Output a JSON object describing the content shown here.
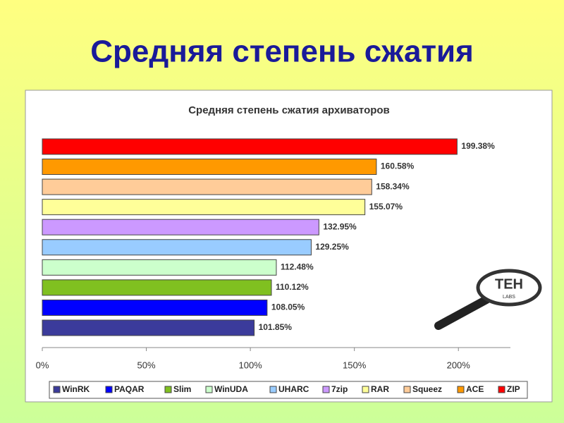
{
  "slide_title": "Средняя степень сжатия",
  "logo": {
    "text": "TEH",
    "subtext": "LABS"
  },
  "chart_data": {
    "type": "bar",
    "orientation": "horizontal",
    "title": "Средняя степень сжатия архиваторов",
    "series": [
      {
        "name": "WinRK",
        "color": "#3b3b9b",
        "values": [
          101.85
        ],
        "value_labels": [
          "101.85%"
        ]
      },
      {
        "name": "PAQAR",
        "color": "#0000ff",
        "values": [
          108.05
        ],
        "value_labels": [
          "108.05%"
        ]
      },
      {
        "name": "Slim",
        "color": "#80c020",
        "values": [
          110.12
        ],
        "value_labels": [
          "110.12%"
        ]
      },
      {
        "name": "WinUDA",
        "color": "#ccffcc",
        "values": [
          112.48
        ],
        "value_labels": [
          "112.48%"
        ]
      },
      {
        "name": "UHARC",
        "color": "#99ccff",
        "values": [
          129.25
        ],
        "value_labels": [
          "129.25%"
        ]
      },
      {
        "name": "7zip",
        "color": "#cc99ff",
        "values": [
          132.95
        ],
        "value_labels": [
          "132.95%"
        ]
      },
      {
        "name": "RAR",
        "color": "#ffff99",
        "values": [
          155.07
        ],
        "value_labels": [
          "155.07%"
        ]
      },
      {
        "name": "Squeez",
        "color": "#ffcc99",
        "values": [
          158.34
        ],
        "value_labels": [
          "158.34%"
        ]
      },
      {
        "name": "ACE",
        "color": "#ff9900",
        "values": [
          160.58
        ],
        "value_labels": [
          "160.58%"
        ]
      },
      {
        "name": "ZIP",
        "color": "#ff0000",
        "values": [
          199.38
        ],
        "value_labels": [
          "199.38%"
        ]
      }
    ],
    "xlim": [
      0,
      225
    ],
    "xticks": [
      {
        "value": 0,
        "label": "0%"
      },
      {
        "value": 50,
        "label": "50%"
      },
      {
        "value": 100,
        "label": "100%"
      },
      {
        "value": 150,
        "label": "150%"
      },
      {
        "value": 200,
        "label": "200%"
      }
    ],
    "legend": "bottom"
  }
}
